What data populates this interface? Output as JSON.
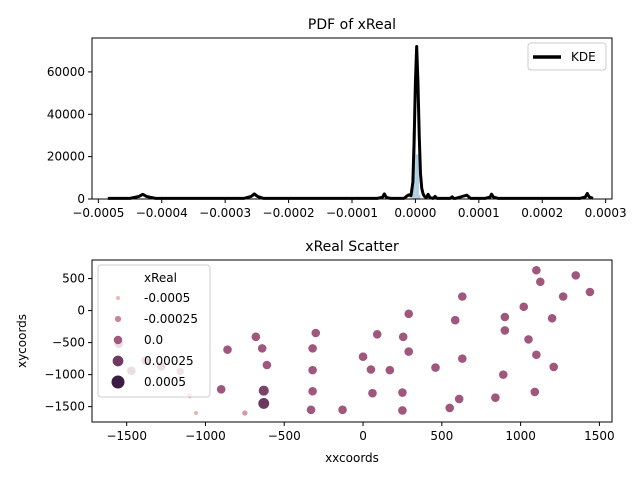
{
  "chart_data": [
    {
      "type": "line",
      "title": "PDF of xReal",
      "xlabel": "",
      "ylabel": "",
      "xlim": [
        -0.00051,
        0.00031
      ],
      "ylim": [
        0,
        76000
      ],
      "xticks": [
        -0.0005,
        -0.0004,
        -0.0003,
        -0.0002,
        -0.0001,
        0.0,
        0.0001,
        0.0002,
        0.0003
      ],
      "xtick_labels": [
        "−0.0005",
        "−0.0004",
        "−0.0003",
        "−0.0002",
        "−0.0001",
        "0.0000",
        "0.0001",
        "0.0002",
        "0.0003"
      ],
      "yticks": [
        0,
        20000,
        40000,
        60000
      ],
      "ytick_labels": [
        "0",
        "20000",
        "40000",
        "60000"
      ],
      "legend": {
        "position": "top-right",
        "entries": [
          "KDE"
        ]
      },
      "histogram": {
        "color": "#a6c8e0",
        "bins": [
          {
            "x0": -4.5e-06,
            "x1": 5e-07,
            "count": 32000
          },
          {
            "x0": 5e-07,
            "x1": 5.5e-06,
            "count": 21000
          },
          {
            "x0": 5.5e-06,
            "x1": 8e-06,
            "count": 2000
          }
        ]
      },
      "series": [
        {
          "name": "KDE",
          "color": "#000000",
          "x": [
            -0.000485,
            -0.00045,
            -0.000436,
            -0.00043,
            -0.000424,
            -0.00041,
            -0.00027,
            -0.000259,
            -0.000254,
            -0.000249,
            -0.00024,
            -6e-05,
            -5.2e-05,
            -4.9e-05,
            -4.6e-05,
            -4e-05,
            -1.8e-05,
            -1.3e-05,
            -1e-05,
            -7e-06,
            -4e-06,
            -2e-06,
            0.0,
            2e-06,
            4e-06,
            6e-06,
            8e-06,
            1e-05,
            1.2e-05,
            1.4e-05,
            1.7e-05,
            2e-05,
            2.3e-05,
            2.8e-05,
            3.1e-05,
            3.4e-05,
            4e-05,
            5.5e-05,
            5.8e-05,
            6e-05,
            6.4e-05,
            7.5e-05,
            8.1e-05,
            8.7e-05,
            0.00011,
            0.000118,
            0.00012,
            0.000123,
            0.00013,
            0.00026,
            0.000268,
            0.000271,
            0.000274,
            0.00028
          ],
          "y": [
            300,
            300,
            1200,
            2200,
            1200,
            300,
            300,
            1200,
            2400,
            1200,
            300,
            300,
            800,
            2400,
            800,
            300,
            300,
            1500,
            2000,
            1500,
            8000,
            28000,
            55000,
            72000,
            55000,
            30000,
            12000,
            5000,
            2500,
            1300,
            600,
            2200,
            600,
            300,
            1200,
            300,
            300,
            300,
            1000,
            300,
            300,
            1300,
            1800,
            300,
            300,
            900,
            2300,
            900,
            300,
            300,
            1000,
            2600,
            1000,
            300
          ]
        }
      ]
    },
    {
      "type": "scatter",
      "title": "xReal Scatter",
      "xlabel": "xxcoords",
      "ylabel": "xycoords",
      "xlim": [
        -1720,
        1580
      ],
      "ylim": [
        -1740,
        790
      ],
      "xticks": [
        -1500,
        -1000,
        -500,
        0,
        500,
        1000,
        1500
      ],
      "xtick_labels": [
        "−1500",
        "−1000",
        "−500",
        "0",
        "500",
        "1000",
        "1500"
      ],
      "yticks": [
        -1500,
        -1000,
        -500,
        0,
        500
      ],
      "ytick_labels": [
        "−1500",
        "−1000",
        "−500",
        "0",
        "500"
      ],
      "legend": {
        "position": "top-left",
        "title": "xReal",
        "entries": [
          {
            "label": "-0.0005",
            "value": -0.0005
          },
          {
            "label": "-0.00025",
            "value": -0.00025
          },
          {
            "label": "0.0",
            "value": 0.0
          },
          {
            "label": "0.00025",
            "value": 0.00025
          },
          {
            "label": "0.0005",
            "value": 0.0005
          }
        ]
      },
      "hue_colors": {
        "low": "#e8b8b4",
        "mid": "#a2587e",
        "high": "#3a1c45"
      },
      "points": [
        {
          "x": 1100,
          "y": 630,
          "hue": 1e-05
        },
        {
          "x": 1350,
          "y": 550,
          "hue": 1e-05
        },
        {
          "x": 1125,
          "y": 450,
          "hue": 1e-05
        },
        {
          "x": 1440,
          "y": 290,
          "hue": 1e-05
        },
        {
          "x": 630,
          "y": 220,
          "hue": 1e-05
        },
        {
          "x": 1270,
          "y": 220,
          "hue": 1e-05
        },
        {
          "x": 1020,
          "y": 60,
          "hue": 1e-05
        },
        {
          "x": 290,
          "y": -50,
          "hue": 1e-05
        },
        {
          "x": 900,
          "y": -100,
          "hue": 1e-05
        },
        {
          "x": 585,
          "y": -150,
          "hue": 1e-05
        },
        {
          "x": 1200,
          "y": -120,
          "hue": 1e-05
        },
        {
          "x": 900,
          "y": -310,
          "hue": 1e-05
        },
        {
          "x": -300,
          "y": -350,
          "hue": 1e-05
        },
        {
          "x": 90,
          "y": -370,
          "hue": 1e-05
        },
        {
          "x": -680,
          "y": -410,
          "hue": 1e-05
        },
        {
          "x": 255,
          "y": -410,
          "hue": 1e-05
        },
        {
          "x": 1050,
          "y": -450,
          "hue": 1e-05
        },
        {
          "x": -860,
          "y": -610,
          "hue": 1e-05
        },
        {
          "x": -640,
          "y": -590,
          "hue": 1e-05
        },
        {
          "x": -320,
          "y": -590,
          "hue": 1e-05
        },
        {
          "x": 290,
          "y": -640,
          "hue": 1e-05
        },
        {
          "x": 1100,
          "y": -690,
          "hue": 1e-05
        },
        {
          "x": 0,
          "y": -720,
          "hue": 1e-05
        },
        {
          "x": 630,
          "y": -750,
          "hue": 1e-05
        },
        {
          "x": -610,
          "y": -850,
          "hue": 1e-05
        },
        {
          "x": 460,
          "y": -890,
          "hue": 1e-05
        },
        {
          "x": 1210,
          "y": -880,
          "hue": 1e-05
        },
        {
          "x": -320,
          "y": -930,
          "hue": 1e-05
        },
        {
          "x": 50,
          "y": -920,
          "hue": 1e-05
        },
        {
          "x": 170,
          "y": -930,
          "hue": 1e-05
        },
        {
          "x": 890,
          "y": -1000,
          "hue": 1e-05
        },
        {
          "x": -900,
          "y": -1230,
          "hue": 1e-05
        },
        {
          "x": -630,
          "y": -1250,
          "hue": 0.00018
        },
        {
          "x": -320,
          "y": -1260,
          "hue": 1e-05
        },
        {
          "x": 60,
          "y": -1290,
          "hue": 1e-05
        },
        {
          "x": 250,
          "y": -1280,
          "hue": 1e-05
        },
        {
          "x": 1090,
          "y": -1270,
          "hue": 1e-05
        },
        {
          "x": 610,
          "y": -1380,
          "hue": 1e-05
        },
        {
          "x": 840,
          "y": -1360,
          "hue": 1e-05
        },
        {
          "x": -630,
          "y": -1450,
          "hue": 0.00027
        },
        {
          "x": -330,
          "y": -1550,
          "hue": 1e-05
        },
        {
          "x": -130,
          "y": -1550,
          "hue": 1e-05
        },
        {
          "x": 250,
          "y": -1560,
          "hue": 1e-05
        },
        {
          "x": 550,
          "y": -1520,
          "hue": 1e-05
        },
        {
          "x": -1470,
          "y": -940,
          "hue": 1e-05
        },
        {
          "x": -1160,
          "y": -950,
          "hue": -0.00012
        },
        {
          "x": -1380,
          "y": -780,
          "hue": 1e-05
        },
        {
          "x": -1280,
          "y": -870,
          "hue": 1e-05
        },
        {
          "x": -1550,
          "y": -520,
          "hue": 1e-05
        },
        {
          "x": -1100,
          "y": -1330,
          "hue": -0.0004
        },
        {
          "x": -1060,
          "y": -1600,
          "hue": -0.00048
        },
        {
          "x": -750,
          "y": -1600,
          "hue": -0.00035
        }
      ]
    }
  ]
}
